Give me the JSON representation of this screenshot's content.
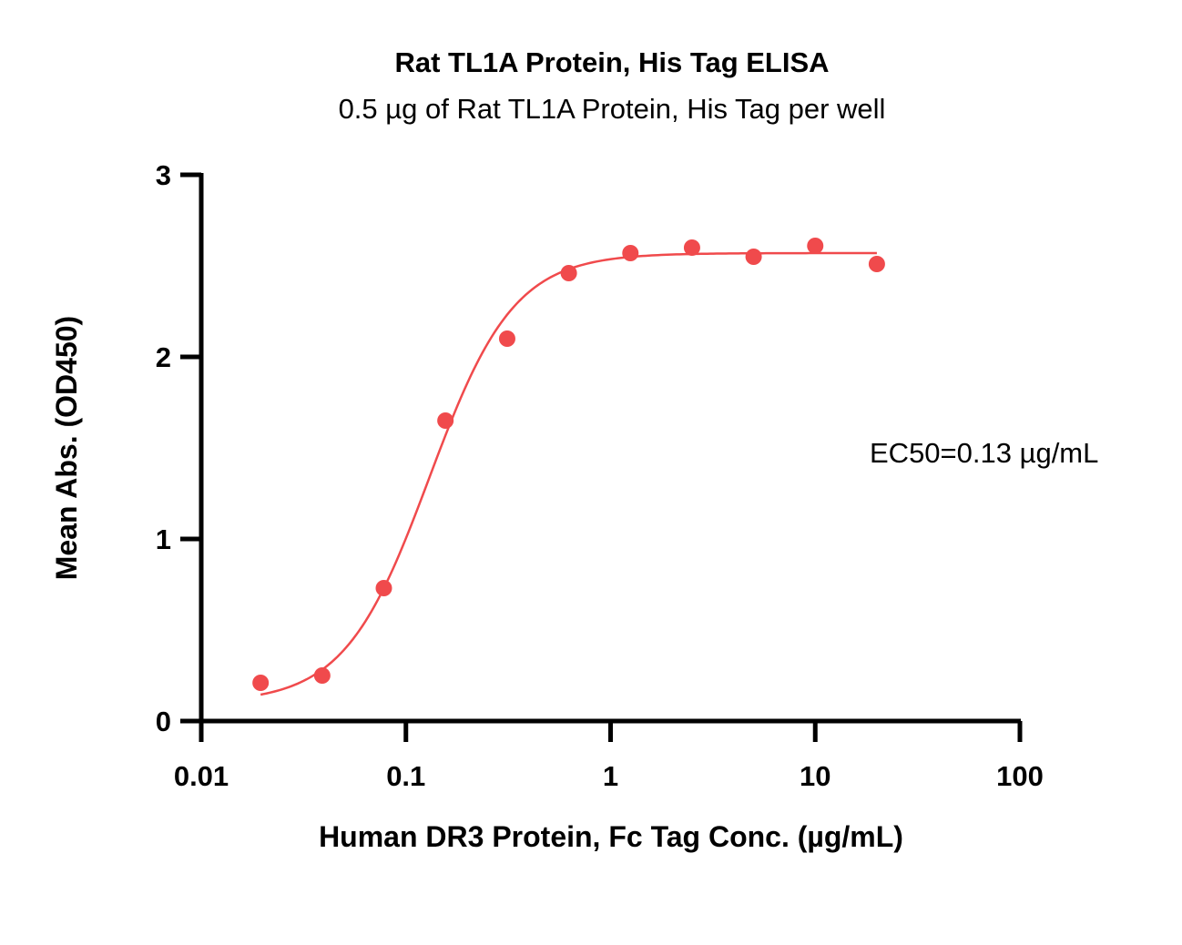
{
  "chart_data": {
    "type": "scatter",
    "title": "Rat TL1A Protein, His Tag ELISA",
    "subtitle": "0.5 µg of Rat TL1A Protein, His Tag per well",
    "xlabel": "Human DR3 Protein, Fc Tag Conc. (µg/mL)",
    "ylabel": "Mean Abs. (OD450)",
    "x_scale": "log",
    "xlim": [
      0.01,
      100
    ],
    "ylim": [
      0,
      3
    ],
    "x_ticks": [
      0.01,
      0.1,
      1,
      10,
      100
    ],
    "x_tick_labels": [
      "0.01",
      "0.1",
      "1",
      "10",
      "100"
    ],
    "y_ticks": [
      0,
      1,
      2,
      3
    ],
    "y_tick_labels": [
      "0",
      "1",
      "2",
      "3"
    ],
    "grid": false,
    "color": "#f04a4c",
    "annotation": "EC50=0.13 µg/mL",
    "series": [
      {
        "x": [
          0.0195,
          0.039,
          0.078,
          0.156,
          0.3125,
          0.625,
          1.25,
          2.5,
          5,
          10,
          20
        ],
        "y": [
          0.21,
          0.25,
          0.73,
          1.65,
          2.1,
          2.46,
          2.57,
          2.6,
          2.55,
          2.61,
          2.51
        ]
      }
    ],
    "fit": {
      "type": "4PL",
      "bottom": 0.1,
      "top": 2.57,
      "ec50": 0.13,
      "hill": 2.1,
      "x_range": [
        0.0195,
        20
      ]
    }
  }
}
